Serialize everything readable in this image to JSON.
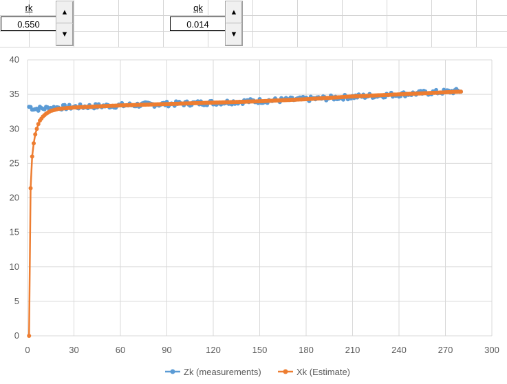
{
  "controls": {
    "rk": {
      "label": "rk",
      "value": "0.550"
    },
    "qk": {
      "label": "qk",
      "value": "0.014"
    }
  },
  "chart_data": {
    "type": "line",
    "x_ticks": [
      0,
      30,
      60,
      90,
      120,
      150,
      180,
      210,
      240,
      270,
      300
    ],
    "y_ticks": [
      0,
      5,
      10,
      15,
      20,
      25,
      30,
      35,
      40
    ],
    "xlim": [
      0,
      300
    ],
    "ylim": [
      0,
      40
    ],
    "grid": true,
    "legend_position": "bottom",
    "series": [
      {
        "name": "Zk (measurements)",
        "color": "#5b9bd5",
        "x_range": [
          1,
          280
        ],
        "trend": [
          [
            1,
            33.2
          ],
          [
            5,
            32.9
          ],
          [
            20,
            33.1
          ],
          [
            60,
            33.4
          ],
          [
            120,
            33.8
          ],
          [
            180,
            34.3
          ],
          [
            240,
            35.0
          ],
          [
            280,
            35.5
          ]
        ],
        "noise": 0.35
      },
      {
        "name": "Xk (Estimate)",
        "color": "#ed7d31",
        "points": [
          [
            1,
            0
          ],
          [
            2,
            21.4
          ],
          [
            3,
            26.0
          ],
          [
            4,
            27.9
          ],
          [
            5,
            29.2
          ],
          [
            6,
            30.0
          ],
          [
            7,
            30.7
          ],
          [
            8,
            31.2
          ],
          [
            10,
            31.8
          ],
          [
            12,
            32.2
          ],
          [
            15,
            32.6
          ],
          [
            20,
            32.9
          ],
          [
            30,
            33.1
          ],
          [
            60,
            33.4
          ],
          [
            90,
            33.6
          ],
          [
            120,
            33.8
          ],
          [
            150,
            34.0
          ],
          [
            180,
            34.3
          ],
          [
            210,
            34.7
          ],
          [
            240,
            35.0
          ],
          [
            270,
            35.3
          ],
          [
            280,
            35.4
          ]
        ]
      }
    ]
  }
}
